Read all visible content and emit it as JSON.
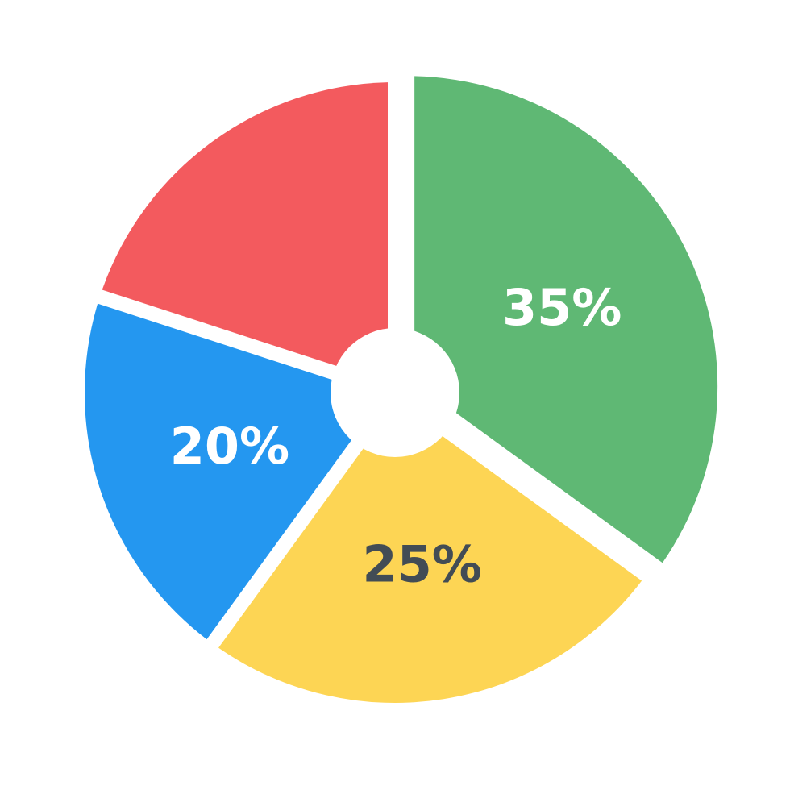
{
  "chart_data": {
    "type": "pie",
    "style": "donut-exploded",
    "slices": [
      {
        "label": "35%",
        "value": 35,
        "color": "#5FB874",
        "label_color": "#FFFFFF"
      },
      {
        "label": "25%",
        "value": 25,
        "color": "#FDD554",
        "label_color": "#424C55"
      },
      {
        "label": "20%",
        "value": 20,
        "color": "#2497F0",
        "label_color": "#FFFFFF"
      },
      {
        "label": "",
        "value": 20,
        "color": "#F35A5E",
        "label_color": "#FFFFFF"
      }
    ],
    "start_angle_deg": 0,
    "direction": "clockwise",
    "exploded_slice_index": 0,
    "center_hole_color": "#FFFFFF",
    "background_color": "#FFFFFF",
    "legend": "none",
    "grid": false
  }
}
